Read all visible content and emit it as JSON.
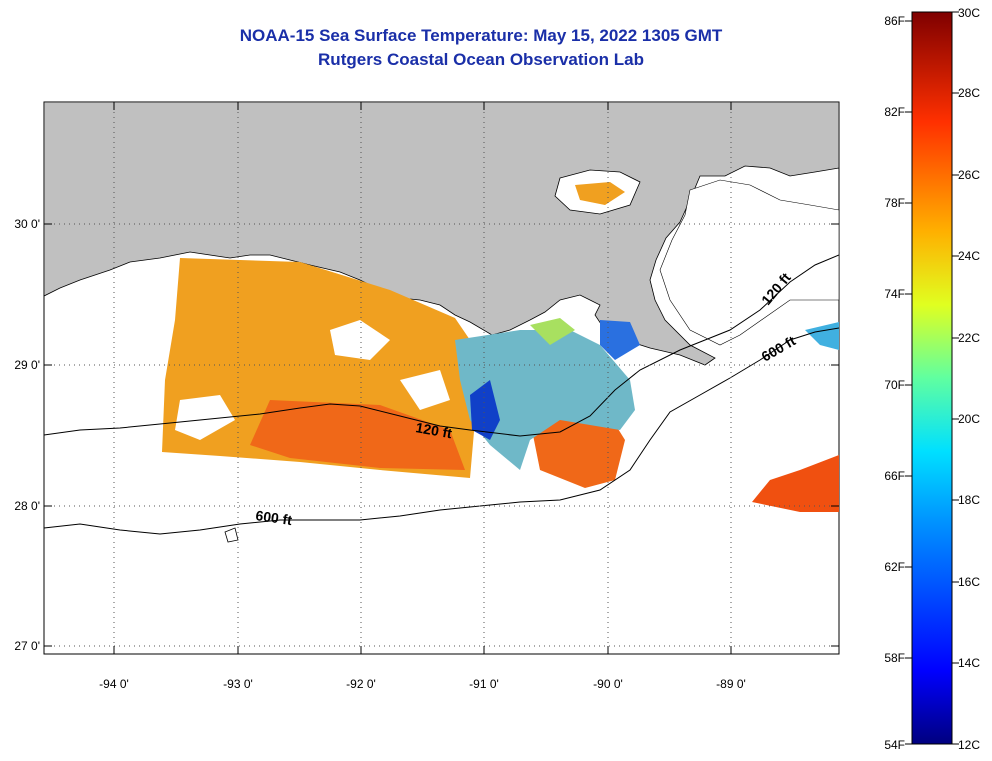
{
  "title": {
    "line1": "NOAA-15 Sea Surface Temperature:  May 15, 2022 1305 GMT",
    "line2": "Rutgers Coastal Ocean Observation Lab"
  },
  "map": {
    "lon_labels": [
      "-94 0'",
      "-93 0'",
      "-92 0'",
      "-91 0'",
      "-90 0'",
      "-89 0'"
    ],
    "lat_labels": [
      "30 0'",
      "29 0'",
      "28 0'",
      "27 0'"
    ],
    "contour_labels": [
      "120 ft",
      "600 ft",
      "120 ft",
      "600 ft"
    ]
  },
  "colorbar": {
    "fahrenheit": [
      "86F",
      "82F",
      "78F",
      "74F",
      "70F",
      "66F",
      "62F",
      "58F",
      "54F"
    ],
    "celsius": [
      "30C",
      "28C",
      "26C",
      "24C",
      "22C",
      "20C",
      "18C",
      "16C",
      "14C",
      "12C"
    ],
    "range_c": [
      12,
      30
    ]
  },
  "colors": {
    "title": "#1a2fa8",
    "land": "#c0c0c0",
    "warm_sst": "#f0a020",
    "hot_sst": "#f05010",
    "cold_sst": "#1040c8"
  }
}
